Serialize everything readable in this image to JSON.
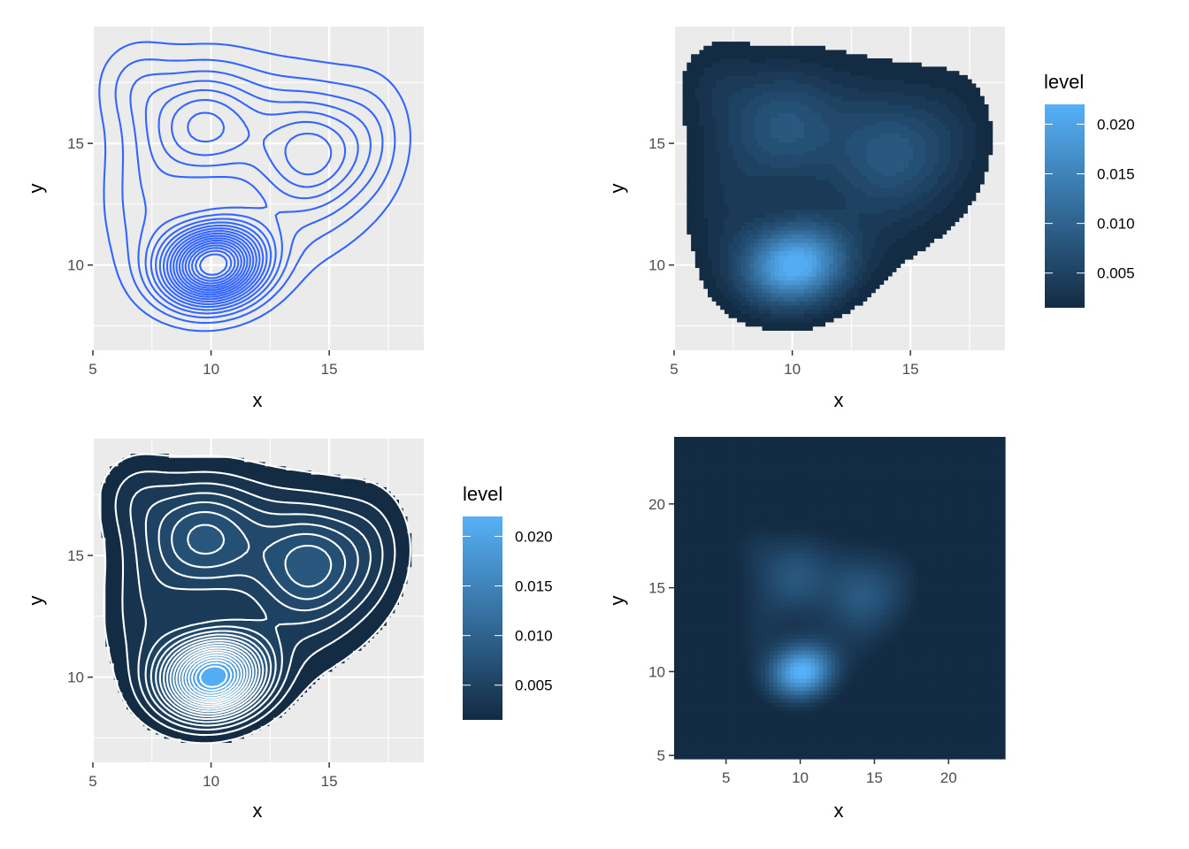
{
  "colors": {
    "panel_bg": "#EBEBEB",
    "grid_major": "#FFFFFF",
    "contour_line": "#3366FF",
    "density_low": "#132B43",
    "density_high": "#56B1F7",
    "axis_text": "#4D4D4D"
  },
  "chart_data": [
    {
      "type": "contour",
      "title": "",
      "xlabel": "x",
      "ylabel": "y",
      "xlim": [
        5,
        19
      ],
      "ylim": [
        6.5,
        19.8
      ],
      "x_ticks": [
        5,
        10,
        15
      ],
      "y_ticks": [
        10,
        15
      ],
      "line_color": "#3366FF",
      "density_peaks": [
        {
          "x": 10.1,
          "y": 10.0,
          "level": 0.0225
        },
        {
          "x": 9.6,
          "y": 15.6,
          "level": 0.009
        },
        {
          "x": 14.3,
          "y": 14.6,
          "level": 0.0085
        }
      ],
      "contour_count": 19
    },
    {
      "type": "filled_contour",
      "title": "",
      "xlabel": "x",
      "ylabel": "y",
      "xlim": [
        5,
        19
      ],
      "ylim": [
        6.5,
        19.8
      ],
      "x_ticks": [
        5,
        10,
        15
      ],
      "y_ticks": [
        10,
        15
      ],
      "legend": {
        "title": "level",
        "placement": "right",
        "breaks": [
          "0.020",
          "0.015",
          "0.010",
          "0.005"
        ],
        "break_values": [
          0.02,
          0.015,
          0.01,
          0.005
        ],
        "range": [
          0.0015,
          0.022
        ]
      }
    },
    {
      "type": "filled_contour_with_lines",
      "title": "",
      "xlabel": "x",
      "ylabel": "y",
      "xlim": [
        5,
        19
      ],
      "ylim": [
        6.5,
        19.8
      ],
      "x_ticks": [
        5,
        10,
        15
      ],
      "y_ticks": [
        10,
        15
      ],
      "line_color": "#FFFFFF",
      "legend": {
        "title": "level",
        "placement": "right",
        "breaks": [
          "0.020",
          "0.015",
          "0.010",
          "0.005"
        ],
        "break_values": [
          0.02,
          0.015,
          0.01,
          0.005
        ],
        "range": [
          0.0015,
          0.022
        ]
      }
    },
    {
      "type": "heatmap",
      "title": "",
      "xlabel": "x",
      "ylabel": "y",
      "xlim": [
        1.5,
        23.8
      ],
      "ylim": [
        4.8,
        24.0
      ],
      "x_ticks": [
        5,
        10,
        15,
        20
      ],
      "y_ticks": [
        5,
        10,
        15,
        20
      ],
      "grid": false
    }
  ]
}
